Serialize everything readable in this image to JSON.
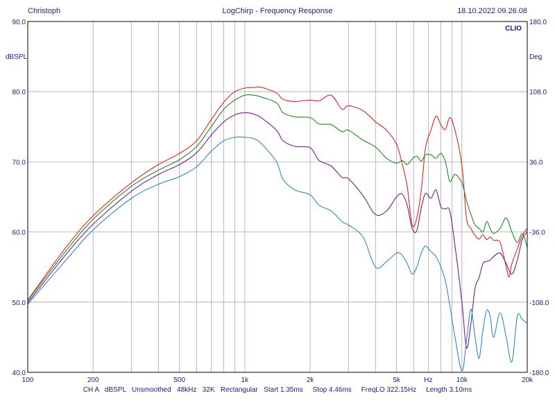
{
  "header": {
    "left": "Christoph",
    "title": "LogChirp - Frequency Response",
    "datetime": "18.10.2022 09.26.08"
  },
  "brand": "CLIO",
  "footer": "CH A   dBSPL   Unsmoothed   48kHz   32K   Rectangular   Start 1.35ms     Stop 4.46ms     FreqLO 322.15Hz     Length 3.10ms",
  "chart_data": {
    "type": "line",
    "xscale": "log",
    "xlim": [
      100,
      20000
    ],
    "ylim": [
      40,
      90
    ],
    "y2lim": [
      -180,
      180
    ],
    "ylabel": "dBSPL",
    "y2label": "Deg",
    "xticks": [
      100,
      200,
      500,
      1000,
      2000,
      5000,
      10000,
      20000
    ],
    "xtick_labels": [
      "100",
      "200",
      "500",
      "1k",
      "2k",
      "5k",
      "10k",
      "20k"
    ],
    "xtick_unit": {
      "value": 7000,
      "label": "Hz"
    },
    "yticks": [
      40,
      50,
      60,
      70,
      80,
      90
    ],
    "ytick_labels": [
      "40.0",
      "50.0",
      "60.0",
      "70.0",
      "80.0",
      "90.0"
    ],
    "y2ticks": [
      -180,
      -108,
      -36,
      36,
      108,
      180
    ],
    "y2tick_labels": [
      "-180.0",
      "-108.0",
      "-36.0",
      "36.0",
      "108.0",
      "180.0"
    ],
    "grid": true,
    "series": [
      {
        "color": "#e8201c",
        "x": [
          100,
          150,
          200,
          300,
          400,
          500,
          600,
          700,
          800,
          900,
          1000,
          1100,
          1200,
          1400,
          1500,
          1700,
          2000,
          2200,
          2500,
          2800,
          3000,
          3500,
          4000,
          4500,
          5000,
          5300,
          5600,
          5900,
          6200,
          6500,
          6800,
          7200,
          7600,
          8000,
          8400,
          8800,
          9300,
          10000,
          10500,
          11000,
          11500,
          12000,
          12500,
          13000,
          13500,
          14000,
          15000,
          16000,
          16500,
          17000,
          18000,
          19000,
          20000
        ],
        "y": [
          50.3,
          57.8,
          62.3,
          67.0,
          69.6,
          71.2,
          73.0,
          76.0,
          78.5,
          80.0,
          80.5,
          80.6,
          80.6,
          79.8,
          78.9,
          78.6,
          78.8,
          78.7,
          79.5,
          77.5,
          78.0,
          77.3,
          75.7,
          74.5,
          72.5,
          69.8,
          66.5,
          61.0,
          62.0,
          66.0,
          72.0,
          74.5,
          76.5,
          75.3,
          74.6,
          76.3,
          74.5,
          69.5,
          62.0,
          60.5,
          59.5,
          59.0,
          59.6,
          58.9,
          59.3,
          58.8,
          58.5,
          55.0,
          53.6,
          55.5,
          57.6,
          59.5,
          60.5
        ]
      },
      {
        "color": "#208a20",
        "x": [
          100,
          150,
          200,
          300,
          400,
          500,
          600,
          700,
          800,
          900,
          1000,
          1100,
          1200,
          1400,
          1500,
          1700,
          2000,
          2200,
          2500,
          2800,
          3000,
          3500,
          4000,
          4500,
          5000,
          5300,
          5600,
          5900,
          6200,
          6500,
          6800,
          7200,
          7600,
          8000,
          8400,
          8800,
          9300,
          10000,
          10500,
          11000,
          11500,
          12000,
          12500,
          13000,
          13500,
          14000,
          15000,
          16000,
          17000,
          18000,
          19000,
          20000
        ],
        "y": [
          50.2,
          57.3,
          61.8,
          66.5,
          68.8,
          70.3,
          72.2,
          75.0,
          77.5,
          78.8,
          79.5,
          79.5,
          79.2,
          78.4,
          77.0,
          76.4,
          76.3,
          75.4,
          75.3,
          74.3,
          74.5,
          73.1,
          72.1,
          70.5,
          69.8,
          70.2,
          69.6,
          70.4,
          70.8,
          70.1,
          71.0,
          71.0,
          70.5,
          71.2,
          70.0,
          67.2,
          68.2,
          67.0,
          64.5,
          62.5,
          61.0,
          60.5,
          60.0,
          61.5,
          60.5,
          59.8,
          60.5,
          62.0,
          60.0,
          58.5,
          59.8,
          57.8
        ]
      },
      {
        "color": "#7a1a8a",
        "x": [
          100,
          150,
          200,
          300,
          400,
          500,
          600,
          700,
          800,
          900,
          1000,
          1100,
          1200,
          1400,
          1500,
          1700,
          2000,
          2200,
          2500,
          2800,
          3000,
          3500,
          4000,
          4500,
          5000,
          5300,
          5600,
          5900,
          6200,
          6500,
          6800,
          7200,
          7600,
          8000,
          8400,
          8800,
          9300,
          10000,
          10500,
          11000,
          11500,
          12000,
          12500,
          13000,
          13500,
          14000,
          15000,
          16000,
          17000,
          18000,
          19000,
          20000
        ],
        "y": [
          49.9,
          56.8,
          61.1,
          65.8,
          68.2,
          69.6,
          71.3,
          73.8,
          75.7,
          76.7,
          77.0,
          76.8,
          76.2,
          74.5,
          73.0,
          72.2,
          72.0,
          70.2,
          69.4,
          67.8,
          67.6,
          65.2,
          62.5,
          63.0,
          65.0,
          65.4,
          63.8,
          60.5,
          60.2,
          63.5,
          65.5,
          64.8,
          66.0,
          63.6,
          63.3,
          63.0,
          58.0,
          50.0,
          43.5,
          47.0,
          52.0,
          53.5,
          55.5,
          55.8,
          56.0,
          56.5,
          57.0,
          55.5,
          54.0,
          56.0,
          59.0,
          60.0
        ]
      },
      {
        "color": "#2a8ac8",
        "x": [
          100,
          150,
          200,
          300,
          400,
          500,
          600,
          700,
          800,
          900,
          1000,
          1100,
          1200,
          1400,
          1500,
          1700,
          2000,
          2200,
          2500,
          2800,
          3000,
          3500,
          4000,
          4500,
          5000,
          5300,
          5600,
          5900,
          6200,
          6500,
          6800,
          7200,
          7600,
          8000,
          8400,
          8800,
          9300,
          10000,
          10500,
          11000,
          11500,
          12000,
          12500,
          13000,
          13500,
          14000,
          15000,
          16000,
          17000,
          18000,
          19000,
          20000
        ],
        "y": [
          49.7,
          56.0,
          60.3,
          64.8,
          66.8,
          67.9,
          69.3,
          71.5,
          73.0,
          73.5,
          73.5,
          73.3,
          72.5,
          70.0,
          67.5,
          66.0,
          65.3,
          63.8,
          63.0,
          61.5,
          61.0,
          59.3,
          55.0,
          55.8,
          57.0,
          56.7,
          55.5,
          54.0,
          55.0,
          57.0,
          58.0,
          57.2,
          56.5,
          55.0,
          53.0,
          49.5,
          45.0,
          40.2,
          44.5,
          49.0,
          45.0,
          42.0,
          46.0,
          48.8,
          48.0,
          45.0,
          48.5,
          45.0,
          41.5,
          48.0,
          47.5,
          47.0
        ]
      }
    ]
  }
}
